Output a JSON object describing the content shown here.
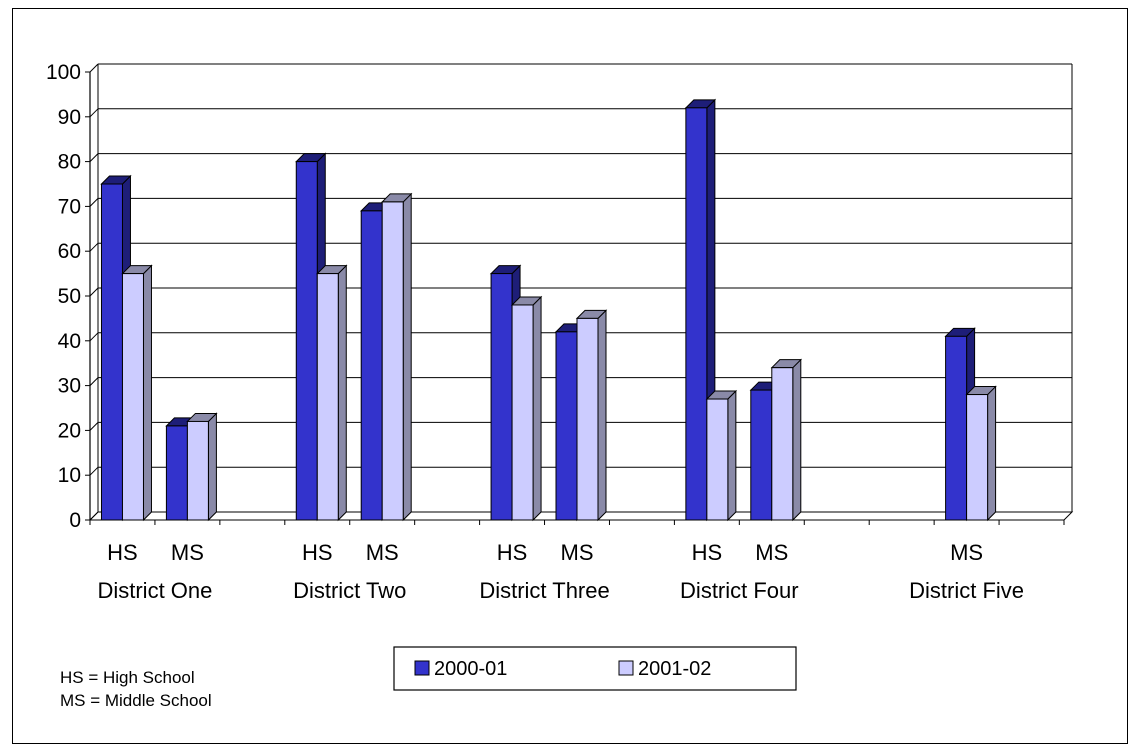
{
  "chart_data": {
    "type": "bar",
    "groups": [
      {
        "name": "District One",
        "bars": [
          {
            "level": "HS",
            "values": [
              75,
              55
            ]
          },
          {
            "level": "MS",
            "values": [
              21,
              22
            ]
          }
        ]
      },
      {
        "name": "District Two",
        "bars": [
          {
            "level": "HS",
            "values": [
              80,
              55
            ]
          },
          {
            "level": "MS",
            "values": [
              69,
              71
            ]
          }
        ]
      },
      {
        "name": "District Three",
        "bars": [
          {
            "level": "HS",
            "values": [
              55,
              48
            ]
          },
          {
            "level": "MS",
            "values": [
              42,
              45
            ]
          }
        ]
      },
      {
        "name": "District Four",
        "bars": [
          {
            "level": "HS",
            "values": [
              92,
              27
            ]
          },
          {
            "level": "MS",
            "values": [
              29,
              34
            ]
          }
        ]
      },
      {
        "name": "District Five",
        "bars": [
          {
            "level": "MS",
            "values": [
              41,
              28
            ]
          }
        ]
      }
    ],
    "series": [
      {
        "name": "2000-01",
        "color": "#3333CC",
        "shade": "#1E1E78"
      },
      {
        "name": "2001-02",
        "color": "#CCCCFF",
        "shade": "#8A8AA8"
      }
    ],
    "y_ticks": [
      0,
      10,
      20,
      30,
      40,
      50,
      60,
      70,
      80,
      90,
      100
    ],
    "ylim": [
      0,
      100
    ],
    "grid": true,
    "legend_position": "bottom-center",
    "notes": [
      "HS = High School",
      "MS = Middle School"
    ]
  }
}
